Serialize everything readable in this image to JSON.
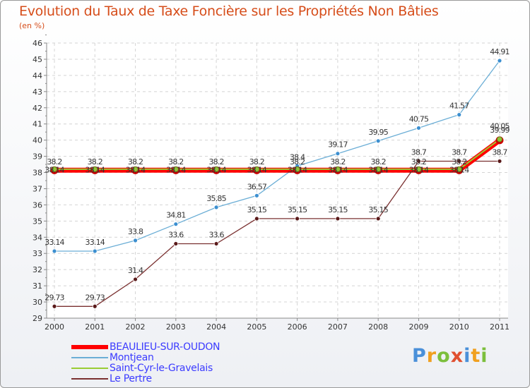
{
  "chart_data": {
    "type": "line",
    "title": "Evolution du Taux de Taxe Foncière sur les Propriétés Non Bâties",
    "subtitle": "(en %)",
    "categories": [
      "2000",
      "2001",
      "2002",
      "2003",
      "2004",
      "2005",
      "2006",
      "2007",
      "2008",
      "2009",
      "2010",
      "2011"
    ],
    "ylim": [
      29,
      46
    ],
    "yticks": [
      29,
      30,
      31,
      32,
      33,
      34,
      35,
      36,
      37,
      38,
      39,
      40,
      41,
      42,
      43,
      44,
      45,
      46
    ],
    "grid": true,
    "series": [
      {
        "name": "BEAULIEU-SUR-OUDON",
        "color": "#ff0000",
        "values": [
          38.14,
          38.14,
          38.14,
          38.14,
          38.14,
          38.14,
          38.14,
          38.14,
          38.14,
          38.14,
          38.14,
          39.99
        ],
        "labels": [
          "38.14",
          "38.14",
          "38.14",
          "38.14",
          "38.14",
          "38.14",
          "38.14",
          "38.14",
          "38.14",
          "38.14",
          "38.14",
          "39.99"
        ]
      },
      {
        "name": "Montjean",
        "color": "#6baed6",
        "values": [
          33.14,
          33.14,
          33.8,
          34.81,
          35.85,
          36.57,
          38.4,
          39.17,
          39.95,
          40.75,
          41.57,
          44.91
        ],
        "labels": [
          "33.14",
          "33.14",
          "33.8",
          "34.81",
          "35.85",
          "36.57",
          "38.4",
          "39.17",
          "39.95",
          "40.75",
          "41.57",
          "44.91"
        ]
      },
      {
        "name": "Saint-Cyr-le-Gravelais",
        "color": "#99cc33",
        "values": [
          38.2,
          38.2,
          38.2,
          38.2,
          38.2,
          38.2,
          38.2,
          38.2,
          38.2,
          38.2,
          38.2,
          40.05
        ],
        "labels": [
          "38.2",
          "38.2",
          "38.2",
          "38.2",
          "38.2",
          "38.2",
          "38.2",
          "38.2",
          "38.2",
          "38.2",
          "38.2",
          "40.05"
        ]
      },
      {
        "name": "Le Pertre",
        "color": "#7a3030",
        "values": [
          29.73,
          29.73,
          31.4,
          33.6,
          33.6,
          35.15,
          35.15,
          35.15,
          35.15,
          38.7,
          38.7,
          38.7
        ],
        "labels": [
          "29.73",
          "29.73",
          "31.4",
          "33.6",
          "33.6",
          "35.15",
          "35.15",
          "35.15",
          "35.15",
          "38.7",
          "38.7",
          "38.7"
        ]
      }
    ]
  },
  "legend": {
    "items": [
      "BEAULIEU-SUR-OUDON",
      "Montjean",
      "Saint-Cyr-le-Gravelais",
      "Le Pertre"
    ]
  },
  "brand": {
    "letters": [
      "P",
      "r",
      "o",
      "x",
      "i",
      "t",
      "i"
    ],
    "colors": [
      "#4a90d9",
      "#f0a020",
      "#7cbf3c",
      "#e05030",
      "#4a90d9",
      "#f0a020",
      "#7cbf3c"
    ]
  }
}
